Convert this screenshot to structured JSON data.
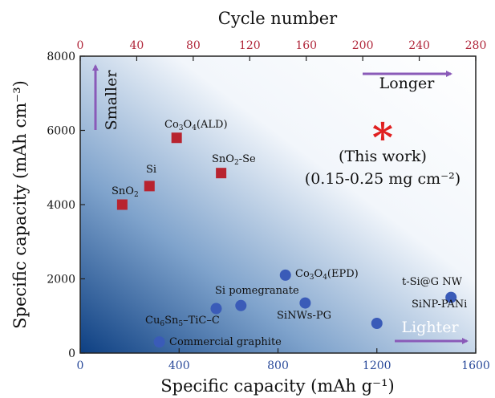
{
  "chart_data": {
    "type": "scatter",
    "xlabel": "Specific capacity (mAh g⁻¹)",
    "ylabel": "Specific capacity (mAh cm⁻³)",
    "x2label": "Cycle number",
    "xlim": [
      0,
      1600
    ],
    "ylim": [
      0,
      8000
    ],
    "x2lim": [
      0,
      280
    ],
    "xticks": [
      0,
      400,
      800,
      1200,
      1600
    ],
    "yticks": [
      0,
      2000,
      4000,
      6000,
      8000
    ],
    "x2ticks": [
      0,
      40,
      80,
      120,
      160,
      200,
      240,
      280
    ],
    "series": [
      {
        "marker": "square",
        "color": "#b8232f",
        "points": [
          {
            "label": "SnO2",
            "x": 170,
            "y": 4000
          },
          {
            "label": "Si",
            "x": 280,
            "y": 4500
          },
          {
            "label": "Co3O4(ALD)",
            "x": 390,
            "y": 5800
          },
          {
            "label": "SnO2-Se",
            "x": 570,
            "y": 4850
          }
        ]
      },
      {
        "marker": "circle",
        "color": "#3a5bb8",
        "points": [
          {
            "label": "Commercial graphite",
            "x": 320,
            "y": 300
          },
          {
            "label": "Cu6Sn5-TiC-C",
            "x": 550,
            "y": 1200
          },
          {
            "label": "Si pomegranate",
            "x": 650,
            "y": 1280
          },
          {
            "label": "Co3O4(EPD)",
            "x": 830,
            "y": 2100
          },
          {
            "label": "SiNWs-PG",
            "x": 910,
            "y": 1350
          },
          {
            "label": "SiNP-PANi",
            "x": 1200,
            "y": 800
          },
          {
            "label": "t-Si@G NW",
            "x": 1500,
            "y": 1500
          }
        ]
      }
    ],
    "highlight": {
      "symbol": "*",
      "color": "#e02020",
      "label_line1": "(This work)",
      "label_line2": "(0.15-0.25 mg cm⁻²)"
    },
    "annotations": {
      "smaller": "Smaller",
      "longer": "Longer",
      "lighter": "Lighter",
      "arrow_color": "#8a5ab8"
    },
    "colors": {
      "bottom_axis": "#2a4a9a",
      "top_axis": "#b0263a",
      "gradient_light": "#ffffff",
      "gradient_dark": "#0d3f82"
    }
  }
}
